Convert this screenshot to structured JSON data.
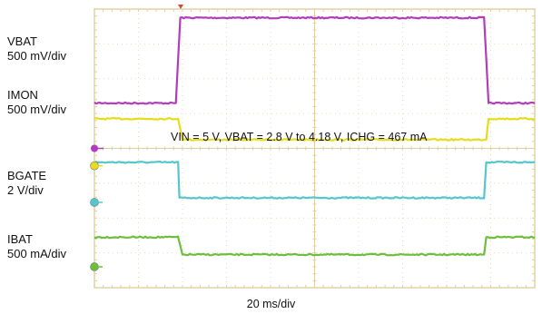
{
  "chart_data": {
    "type": "line",
    "annotation": "VIN = 5 V, VBAT = 2.8 V to 4.18 V, ICHG = 467 mA",
    "time_scale": "20 ms/div",
    "x_divisions": 10,
    "y_divisions": 8,
    "grid": true,
    "channels": [
      {
        "name": "VBAT",
        "scale": "500 mV/div",
        "color": "#b13cbc",
        "x": [
          0,
          1.85,
          1.95,
          8.85,
          8.95,
          10
        ],
        "y": [
          5.3,
          5.3,
          7.75,
          7.75,
          5.3,
          5.3
        ]
      },
      {
        "name": "IMON",
        "scale": "500 mV/div",
        "color": "#e6dc1e",
        "x": [
          0,
          1.9,
          2.0,
          8.9,
          8.95,
          10
        ],
        "y": [
          4.85,
          4.85,
          4.25,
          4.25,
          4.85,
          4.85
        ]
      },
      {
        "name": "BGATE",
        "scale": "2 V/div",
        "color": "#55c6cc",
        "x": [
          0,
          1.9,
          1.93,
          8.85,
          8.9,
          10
        ],
        "y": [
          3.6,
          3.6,
          2.58,
          2.58,
          3.6,
          3.6
        ]
      },
      {
        "name": "IBAT",
        "scale": "500 mA/div",
        "color": "#6cbe3c",
        "x": [
          0,
          1.9,
          2.0,
          8.85,
          8.9,
          10
        ],
        "y": [
          1.45,
          1.45,
          0.95,
          0.95,
          1.45,
          1.45
        ]
      }
    ]
  }
}
